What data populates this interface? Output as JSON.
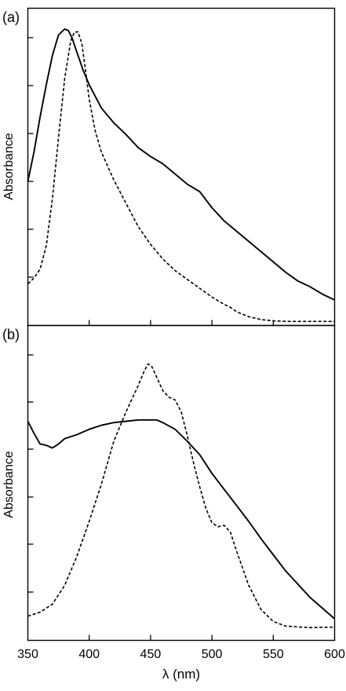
{
  "chart_data": [
    {
      "type": "line",
      "panel_label": "(a)",
      "ylabel": "Absorbance",
      "xlim": [
        350,
        600
      ],
      "ylim": [
        0,
        1
      ],
      "series": [
        {
          "style": "solid",
          "x": [
            350,
            355,
            360,
            365,
            370,
            375,
            380,
            383,
            386,
            390,
            395,
            400,
            405,
            410,
            420,
            430,
            440,
            450,
            460,
            470,
            480,
            490,
            500,
            510,
            520,
            530,
            540,
            550,
            560,
            570,
            580,
            590,
            600
          ],
          "y": [
            0.48,
            0.58,
            0.7,
            0.81,
            0.91,
            0.98,
            1.0,
            0.995,
            0.97,
            0.92,
            0.86,
            0.81,
            0.77,
            0.73,
            0.68,
            0.64,
            0.595,
            0.565,
            0.54,
            0.505,
            0.47,
            0.445,
            0.39,
            0.345,
            0.31,
            0.275,
            0.24,
            0.205,
            0.17,
            0.14,
            0.12,
            0.095,
            0.075
          ]
        },
        {
          "style": "dashed",
          "x": [
            350,
            355,
            360,
            365,
            370,
            375,
            380,
            385,
            388,
            391,
            394,
            397,
            400,
            405,
            410,
            420,
            430,
            440,
            450,
            460,
            470,
            480,
            490,
            500,
            510,
            515,
            520,
            530,
            540,
            550,
            560,
            580,
            600
          ],
          "y": [
            0.13,
            0.15,
            0.18,
            0.26,
            0.42,
            0.63,
            0.83,
            0.96,
            0.99,
            0.99,
            0.95,
            0.86,
            0.76,
            0.65,
            0.58,
            0.485,
            0.405,
            0.325,
            0.265,
            0.215,
            0.175,
            0.145,
            0.115,
            0.085,
            0.06,
            0.05,
            0.035,
            0.018,
            0.008,
            0.004,
            0.002,
            0.002,
            0.002
          ]
        }
      ]
    },
    {
      "type": "line",
      "panel_label": "(b)",
      "ylabel": "Absorbance",
      "xlabel": "λ (nm)",
      "xlim": [
        350,
        600
      ],
      "ylim": [
        0,
        1
      ],
      "x_ticks": [
        350,
        400,
        450,
        500,
        550,
        600
      ],
      "x_tick_labels": [
        "350",
        "400",
        "450",
        "500",
        "550",
        "600"
      ],
      "series": [
        {
          "style": "solid",
          "x": [
            350,
            355,
            360,
            365,
            370,
            375,
            380,
            390,
            400,
            410,
            420,
            430,
            440,
            450,
            455,
            460,
            470,
            480,
            490,
            500,
            510,
            520,
            530,
            540,
            550,
            560,
            570,
            580,
            590,
            600
          ],
          "y": [
            0.775,
            0.73,
            0.69,
            0.685,
            0.675,
            0.69,
            0.71,
            0.725,
            0.745,
            0.76,
            0.77,
            0.775,
            0.78,
            0.78,
            0.78,
            0.77,
            0.745,
            0.7,
            0.65,
            0.58,
            0.52,
            0.46,
            0.4,
            0.335,
            0.275,
            0.215,
            0.165,
            0.115,
            0.075,
            0.035
          ]
        },
        {
          "style": "dashed",
          "x": [
            350,
            360,
            370,
            380,
            390,
            400,
            410,
            420,
            430,
            440,
            445,
            448,
            451,
            455,
            460,
            465,
            470,
            475,
            480,
            485,
            490,
            495,
            500,
            505,
            510,
            515,
            520,
            530,
            540,
            550,
            560,
            580,
            600
          ],
          "y": [
            0.045,
            0.06,
            0.09,
            0.16,
            0.27,
            0.4,
            0.54,
            0.7,
            0.81,
            0.91,
            0.965,
            0.99,
            0.98,
            0.94,
            0.89,
            0.865,
            0.855,
            0.81,
            0.72,
            0.62,
            0.53,
            0.45,
            0.395,
            0.38,
            0.385,
            0.36,
            0.29,
            0.16,
            0.07,
            0.025,
            0.008,
            0.002,
            0.004
          ]
        }
      ]
    }
  ]
}
